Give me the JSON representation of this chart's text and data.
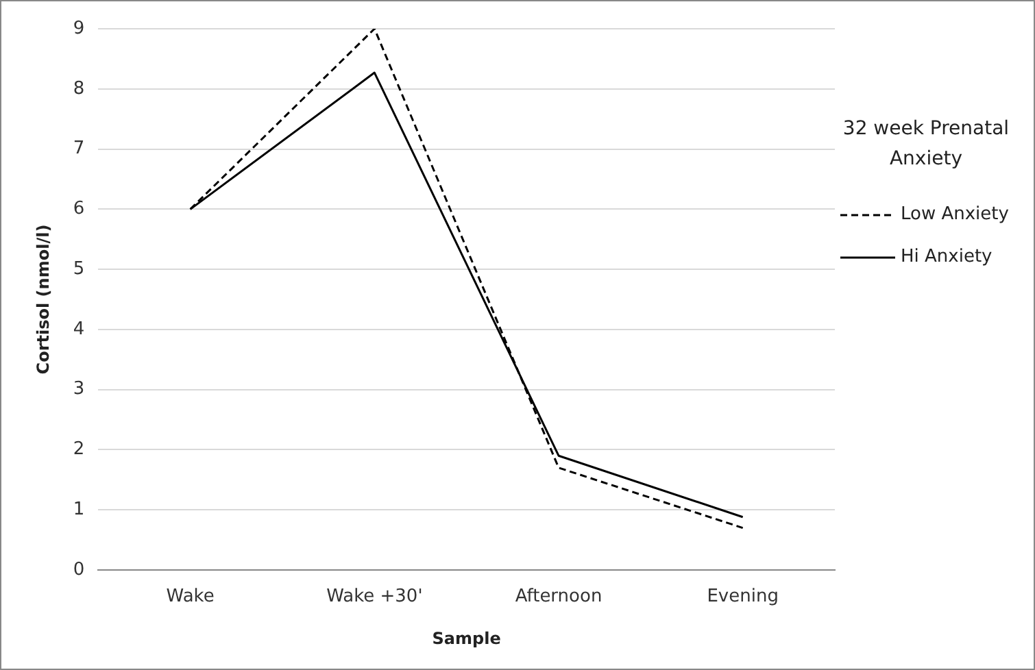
{
  "chart_data": {
    "type": "line",
    "xlabel": "Sample",
    "ylabel": "Cortisol (nmol/l)",
    "legend_title": "32 week Prenatal Anxiety",
    "categories": [
      "Wake",
      "Wake +30'",
      "Afternoon",
      "Evening"
    ],
    "series": [
      {
        "name": "Low Anxiety",
        "color": "#000000",
        "line_style": "dashed",
        "values": [
          6,
          9,
          1.7,
          0.7
        ]
      },
      {
        "name": "Hi Anxiety",
        "color": "#000000",
        "line_style": "solid",
        "values": [
          6,
          8.27,
          1.9,
          0.88
        ]
      }
    ],
    "ylim": [
      0,
      9
    ],
    "yticks": [
      0,
      1,
      2,
      3,
      4,
      5,
      6,
      7,
      8,
      9
    ],
    "grid": "y",
    "legend": "right",
    "marker": "none"
  }
}
